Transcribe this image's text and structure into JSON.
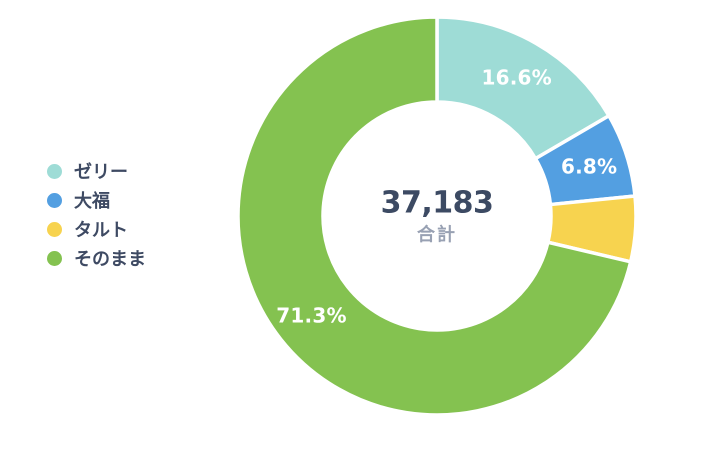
{
  "chart_data": {
    "type": "pie",
    "subtype": "donut",
    "categories": [
      "ゼリー",
      "大福",
      "タルト",
      "そのまま"
    ],
    "values": [
      16.6,
      6.8,
      5.3,
      71.3
    ],
    "unit": "%",
    "slice_labels": [
      "16.6%",
      "6.8%",
      null,
      "71.3%"
    ],
    "colors": [
      "#9edcd6",
      "#539fe1",
      "#f7d34f",
      "#84c250"
    ],
    "center": {
      "total": "37,183",
      "caption": "合計"
    },
    "legend_position": "left",
    "start_angle_deg": 0,
    "direction": "clockwise",
    "title": ""
  },
  "styles": {
    "label_color": "#ffffff",
    "center_total_color": "#3c4a63",
    "center_caption_color": "#98a1b3",
    "legend_text_color": "#3e4a63",
    "background": "#ffffff",
    "slice_gap_color": "#ffffff"
  }
}
